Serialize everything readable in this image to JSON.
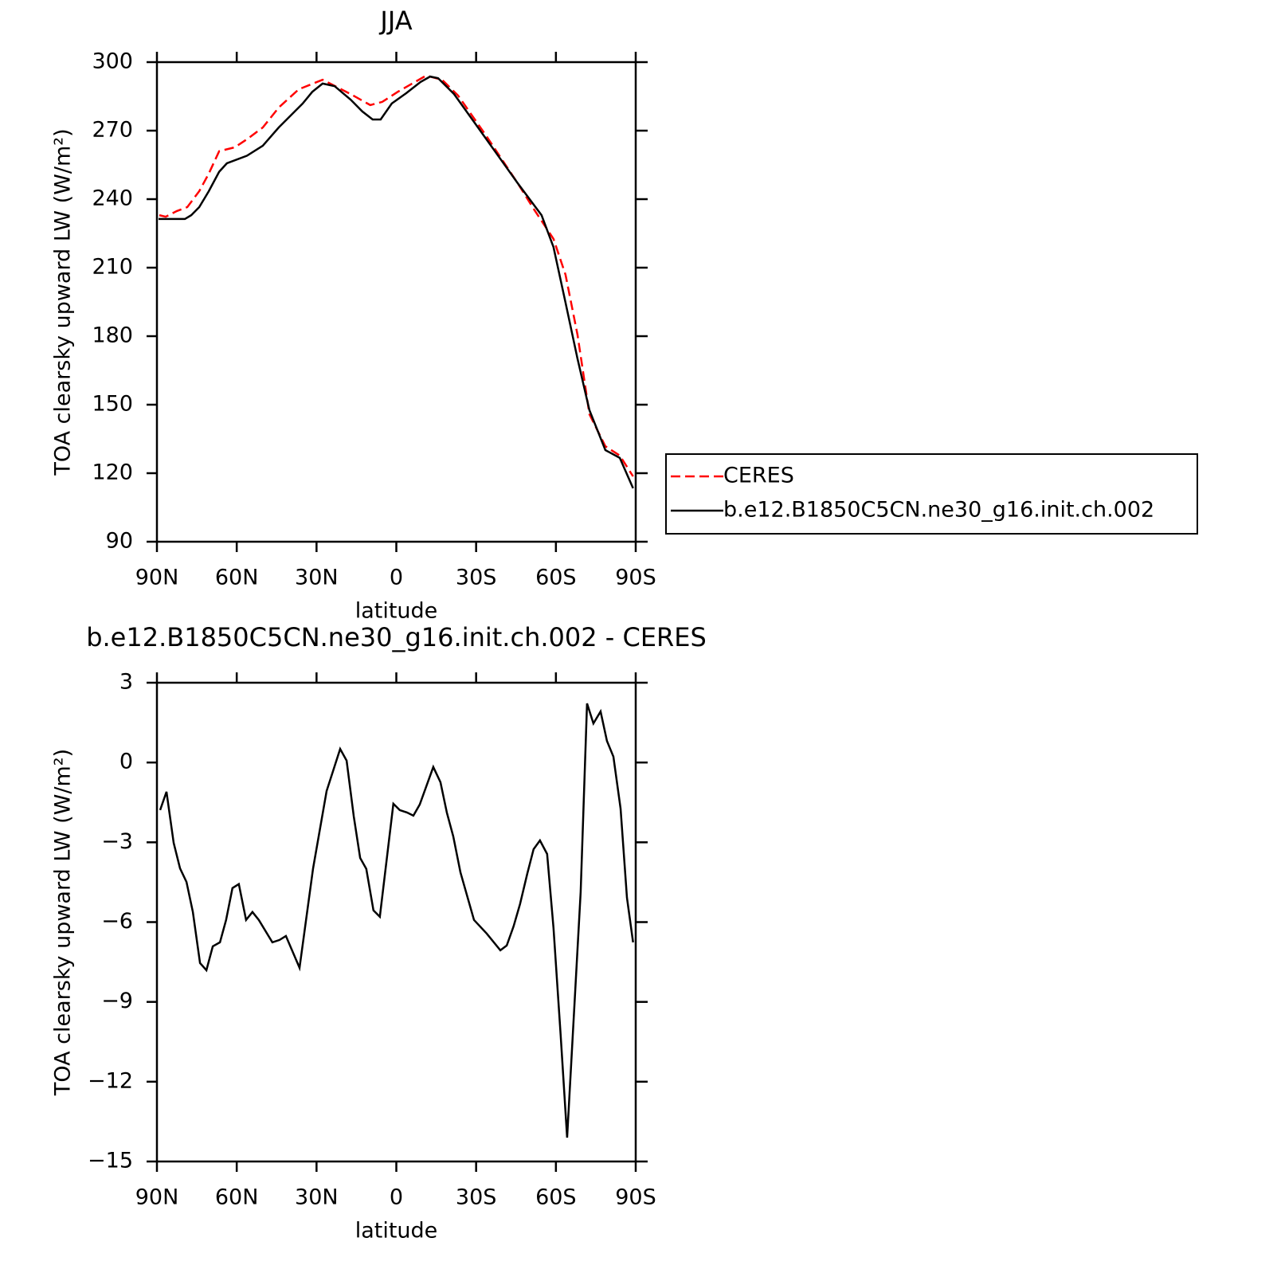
{
  "chart_data": [
    {
      "type": "line",
      "title": "JJA",
      "xlabel": "latitude",
      "ylabel": "TOA clearsky upward LW (W/m²)",
      "xlim": [
        90,
        -90
      ],
      "xticks": [
        {
          "value": 90,
          "label": "90N"
        },
        {
          "value": 60,
          "label": "60N"
        },
        {
          "value": 30,
          "label": "30N"
        },
        0,
        {
          "value": -30,
          "label": "30S"
        },
        {
          "value": -60,
          "label": "60S"
        },
        {
          "value": -90,
          "label": "90S"
        }
      ],
      "ylim": [
        90,
        300
      ],
      "yticks": [
        90,
        120,
        150,
        180,
        210,
        240,
        270,
        300
      ],
      "legend": "right",
      "series": [
        {
          "name": "CERES",
          "color": "#ff0000",
          "dashed": true,
          "x": [
            89.1,
            86.7,
            82.5,
            78.6,
            74.1,
            70.5,
            66.6,
            60.7,
            56.2,
            50.2,
            44.2,
            36.7,
            27.7,
            17.2,
            9.8,
            5.3,
            -0.7,
            -11.2,
            -17.2,
            -23.2,
            -33.7,
            -45.6,
            -51.6,
            -59.1,
            -63.6,
            -68.1,
            -72.6,
            -78.6,
            -84,
            -89
          ],
          "values": [
            233,
            232.3,
            234.8,
            236.5,
            243.5,
            251.2,
            261,
            262.7,
            266.2,
            271.4,
            280.1,
            288.1,
            292.3,
            286,
            281.2,
            282.6,
            287.1,
            294.1,
            292.3,
            285.4,
            267.9,
            247,
            235.8,
            222.6,
            206.9,
            180.7,
            145.8,
            131.8,
            127.7,
            118.6
          ]
        },
        {
          "name": "b.e12.B1850C5CN.ne30_g16.init.ch.002",
          "color": "#000000",
          "dashed": false,
          "x": [
            89.4,
            79.5,
            77.1,
            74.1,
            70.5,
            66.6,
            63.7,
            56.2,
            50.2,
            44.2,
            38.2,
            35.2,
            31.6,
            27.7,
            23.2,
            17.2,
            12.8,
            8.9,
            5.9,
            1.7,
            -3.7,
            -9.1,
            -12.7,
            -15.7,
            -21.7,
            -30.7,
            -45.6,
            -54.6,
            -59.1,
            -63.6,
            -68.1,
            -72.6,
            -78.6,
            -84,
            -89
          ],
          "values": [
            231.3,
            231.3,
            233,
            236.5,
            243.5,
            252,
            255.7,
            259,
            263.4,
            271.4,
            278.4,
            281.9,
            287,
            290.6,
            289.5,
            283.6,
            278.4,
            274.9,
            274.9,
            281.9,
            286.4,
            291.3,
            293.7,
            293,
            286,
            271.4,
            247,
            233,
            219,
            194.7,
            170.2,
            147.6,
            130.1,
            126.7,
            113.4
          ]
        }
      ]
    },
    {
      "type": "line",
      "title": "b.e12.B1850C5CN.ne30_g16.init.ch.002 - CERES",
      "xlabel": "latitude",
      "ylabel": "TOA clearsky upward LW (W/m²)",
      "xlim": [
        90,
        -90
      ],
      "xticks": [
        {
          "value": 90,
          "label": "90N"
        },
        {
          "value": 60,
          "label": "60N"
        },
        {
          "value": 30,
          "label": "30N"
        },
        0,
        {
          "value": -30,
          "label": "30S"
        },
        {
          "value": -60,
          "label": "60S"
        },
        {
          "value": -90,
          "label": "90S"
        }
      ],
      "ylim": [
        -15,
        3
      ],
      "yticks": [
        {
          "value": -15,
          "label": "−15"
        },
        {
          "value": -12,
          "label": "−12"
        },
        {
          "value": -9,
          "label": "−9"
        },
        {
          "value": -6,
          "label": "−6"
        },
        {
          "value": -3,
          "label": "−3"
        },
        0,
        3
      ],
      "color": "#000000",
      "x": [
        88.8,
        86.4,
        83.7,
        81.3,
        78.9,
        76.5,
        73.8,
        71.4,
        69,
        66.3,
        64,
        61.6,
        59.2,
        56.5,
        54.1,
        51.7,
        46.6,
        43.9,
        41.5,
        36.4,
        31.3,
        26.2,
        21.1,
        18.7,
        16,
        13.6,
        11.3,
        8.6,
        6.2,
        1.1,
        -1.3,
        -4,
        -6.4,
        -8.8,
        -13.9,
        -16.6,
        -19,
        -21.4,
        -24.1,
        -29.2,
        -34,
        -39.1,
        -41.5,
        -44.1,
        -46.5,
        -49.2,
        -51.6,
        -54,
        -56.7,
        -59.1,
        -61.8,
        -64.2,
        -69.3,
        -71.7,
        -74.1,
        -76.8,
        -79.2,
        -81.6,
        -84.3,
        -86.7,
        -89
      ],
      "values": [
        -1.79,
        -1.1,
        -3.02,
        -3.98,
        -4.49,
        -5.62,
        -7.54,
        -7.81,
        -6.91,
        -6.76,
        -5.92,
        -4.72,
        -4.57,
        -5.92,
        -5.62,
        -5.92,
        -6.76,
        -6.67,
        -6.52,
        -7.72,
        -3.98,
        -1.07,
        0.51,
        0.07,
        -2.03,
        -3.59,
        -4.0,
        -5.56,
        -5.8,
        -1.55,
        -1.79,
        -1.88,
        -2.0,
        -1.58,
        -0.17,
        -0.74,
        -1.88,
        -2.78,
        -4.13,
        -5.92,
        -6.43,
        -7.06,
        -6.88,
        -6.16,
        -5.32,
        -4.19,
        -3.26,
        -2.93,
        -3.44,
        -6.22,
        -10.26,
        -14.1,
        -4.87,
        2.22,
        1.47,
        1.92,
        0.81,
        0.22,
        -1.73,
        -5.08,
        -6.76
      ]
    }
  ]
}
